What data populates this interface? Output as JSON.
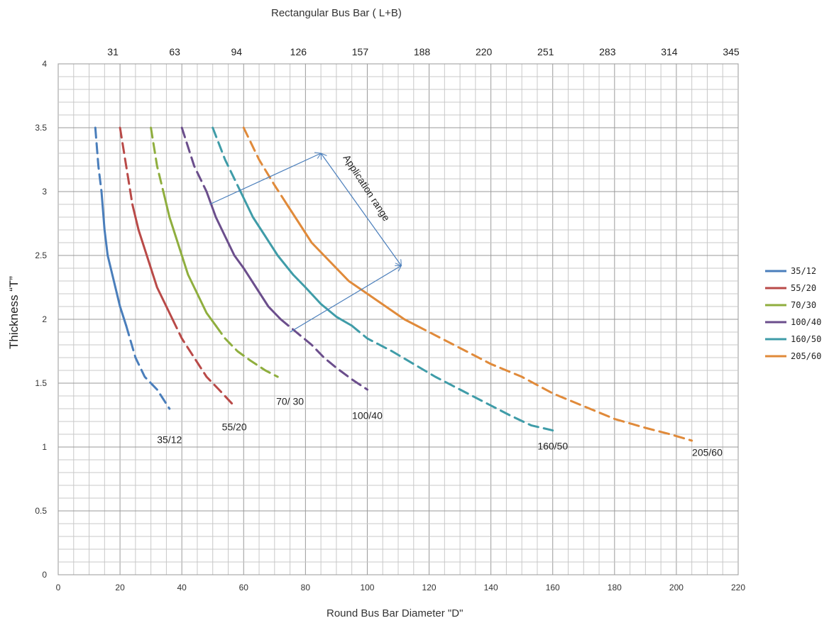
{
  "chart_data": {
    "type": "line",
    "top_axis_title": "Rectangular Bus Bar ( L+B)",
    "top_ticks": [
      "31",
      "63",
      "94",
      "126",
      "157",
      "188",
      "220",
      "251",
      "283",
      "314",
      "345"
    ],
    "xlabel": "Round Bus Bar Diameter  \"D\"",
    "ylabel": "Thickness “T”",
    "xlim": [
      0,
      220
    ],
    "ylim": [
      0,
      4
    ],
    "x_ticks": [
      0,
      20,
      40,
      60,
      80,
      100,
      120,
      140,
      160,
      180,
      200,
      220
    ],
    "y_ticks": [
      "0",
      "0.5",
      "1",
      "1.5",
      "2",
      "2.5",
      "3",
      "3.5",
      "4"
    ],
    "grid": true,
    "legend_position": "right",
    "annotation": "Application range",
    "series": [
      {
        "name": "35/12",
        "label": "35/12",
        "color": "#4a7ebb",
        "solid": [
          [
            14,
            3.0
          ],
          [
            15,
            2.7
          ],
          [
            16,
            2.5
          ],
          [
            18,
            2.3
          ],
          [
            20,
            2.1
          ],
          [
            22,
            1.95
          ]
        ],
        "dashed_start": [
          [
            12,
            3.5
          ],
          [
            13,
            3.2
          ],
          [
            14,
            3.0
          ]
        ],
        "dashed_end": [
          [
            22,
            1.95
          ],
          [
            25,
            1.7
          ],
          [
            28,
            1.55
          ],
          [
            32,
            1.45
          ],
          [
            36,
            1.3
          ]
        ]
      },
      {
        "name": "55/20",
        "label": "55/20",
        "color": "#b94a48",
        "solid": [
          [
            24,
            2.9
          ],
          [
            26,
            2.7
          ],
          [
            28,
            2.55
          ],
          [
            30,
            2.4
          ],
          [
            32,
            2.25
          ],
          [
            35,
            2.1
          ],
          [
            37,
            2.0
          ]
        ],
        "dashed_start": [
          [
            20,
            3.5
          ],
          [
            22,
            3.2
          ],
          [
            24,
            2.9
          ]
        ],
        "dashed_end": [
          [
            37,
            2.0
          ],
          [
            40,
            1.85
          ],
          [
            44,
            1.7
          ],
          [
            48,
            1.55
          ],
          [
            52,
            1.45
          ],
          [
            57,
            1.32
          ]
        ]
      },
      {
        "name": "70/30",
        "label": "70/ 30",
        "color": "#8fae3e",
        "solid": [
          [
            34,
            3.0
          ],
          [
            36,
            2.8
          ],
          [
            38,
            2.65
          ],
          [
            40,
            2.5
          ],
          [
            42,
            2.35
          ],
          [
            45,
            2.2
          ],
          [
            48,
            2.05
          ],
          [
            51,
            1.95
          ]
        ],
        "dashed_start": [
          [
            30,
            3.5
          ],
          [
            32,
            3.2
          ],
          [
            34,
            3.0
          ]
        ],
        "dashed_end": [
          [
            51,
            1.95
          ],
          [
            54,
            1.85
          ],
          [
            58,
            1.75
          ],
          [
            62,
            1.68
          ],
          [
            67,
            1.6
          ],
          [
            71,
            1.55
          ]
        ]
      },
      {
        "name": "100/40",
        "label": "100/40",
        "color": "#6b4e8c",
        "solid": [
          [
            48,
            3.0
          ],
          [
            51,
            2.8
          ],
          [
            54,
            2.65
          ],
          [
            57,
            2.5
          ],
          [
            60,
            2.4
          ],
          [
            64,
            2.25
          ],
          [
            68,
            2.1
          ],
          [
            72,
            2.0
          ]
        ],
        "dashed_start": [
          [
            40,
            3.5
          ],
          [
            44,
            3.2
          ],
          [
            48,
            3.0
          ]
        ],
        "dashed_end": [
          [
            72,
            2.0
          ],
          [
            77,
            1.9
          ],
          [
            82,
            1.8
          ],
          [
            86,
            1.7
          ],
          [
            90,
            1.62
          ],
          [
            95,
            1.53
          ],
          [
            100,
            1.45
          ]
        ]
      },
      {
        "name": "160/50",
        "label": "160/50",
        "color": "#3f9ca8",
        "solid": [
          [
            59,
            3.0
          ],
          [
            63,
            2.8
          ],
          [
            67,
            2.65
          ],
          [
            71,
            2.5
          ],
          [
            76,
            2.35
          ],
          [
            80,
            2.25
          ],
          [
            85,
            2.12
          ],
          [
            90,
            2.02
          ],
          [
            95,
            1.95
          ]
        ],
        "dashed_start": [
          [
            50,
            3.5
          ],
          [
            54,
            3.25
          ],
          [
            59,
            3.0
          ]
        ],
        "dashed_end": [
          [
            95,
            1.95
          ],
          [
            100,
            1.85
          ],
          [
            108,
            1.75
          ],
          [
            115,
            1.65
          ],
          [
            122,
            1.55
          ],
          [
            130,
            1.45
          ],
          [
            138,
            1.35
          ],
          [
            146,
            1.25
          ],
          [
            153,
            1.17
          ],
          [
            160,
            1.13
          ]
        ]
      },
      {
        "name": "205/60",
        "label": "205/60",
        "color": "#e08a3a",
        "solid": [
          [
            74,
            2.9
          ],
          [
            78,
            2.75
          ],
          [
            82,
            2.6
          ],
          [
            88,
            2.45
          ],
          [
            94,
            2.3
          ],
          [
            100,
            2.2
          ],
          [
            106,
            2.1
          ],
          [
            112,
            2.0
          ],
          [
            116,
            1.95
          ]
        ],
        "dashed_start": [
          [
            60,
            3.5
          ],
          [
            65,
            3.25
          ],
          [
            70,
            3.05
          ],
          [
            74,
            2.9
          ]
        ],
        "dashed_end": [
          [
            116,
            1.95
          ],
          [
            124,
            1.85
          ],
          [
            132,
            1.75
          ],
          [
            140,
            1.65
          ],
          [
            150,
            1.55
          ],
          [
            160,
            1.42
          ],
          [
            170,
            1.32
          ],
          [
            180,
            1.22
          ],
          [
            190,
            1.15
          ],
          [
            198,
            1.1
          ],
          [
            205,
            1.05
          ]
        ]
      }
    ]
  }
}
